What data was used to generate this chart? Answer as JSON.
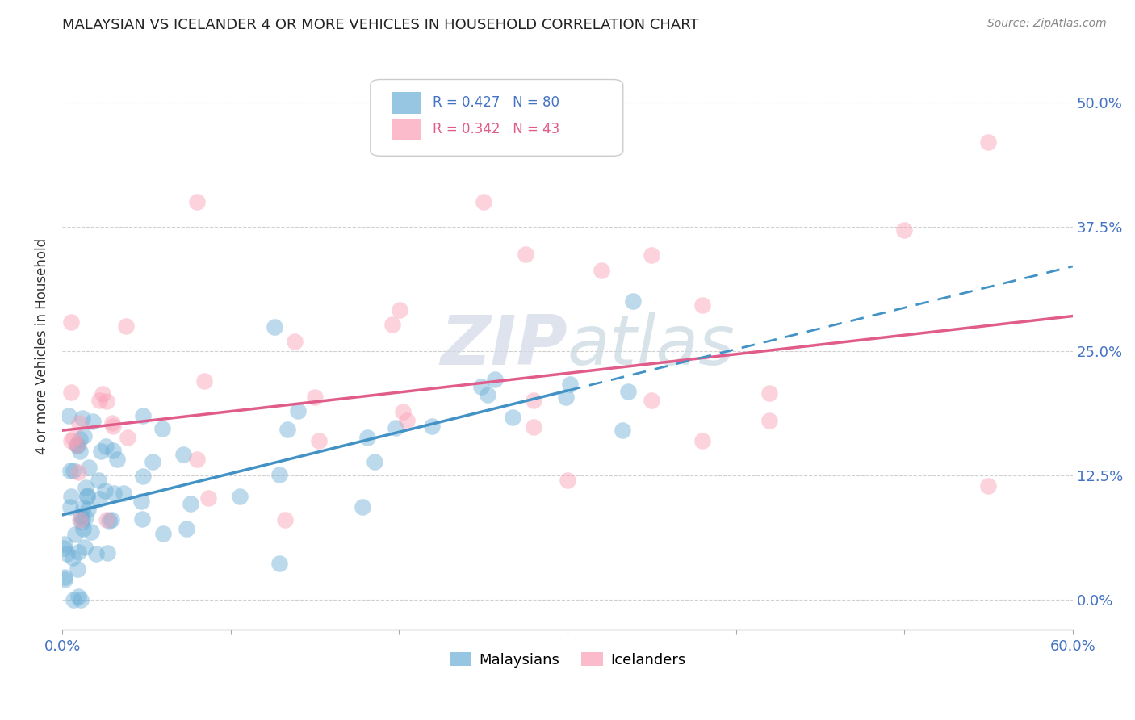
{
  "title": "MALAYSIAN VS ICELANDER 4 OR MORE VEHICLES IN HOUSEHOLD CORRELATION CHART",
  "source": "Source: ZipAtlas.com",
  "ylabel": "4 or more Vehicles in Household",
  "ytick_labels": [
    "0.0%",
    "12.5%",
    "25.0%",
    "37.5%",
    "50.0%"
  ],
  "ytick_values": [
    0.0,
    12.5,
    25.0,
    37.5,
    50.0
  ],
  "xmin": 0.0,
  "xmax": 60.0,
  "ymin": -3.0,
  "ymax": 54.0,
  "legend_r1": "R = 0.427",
  "legend_n1": "N = 80",
  "legend_r2": "R = 0.342",
  "legend_n2": "N = 43",
  "color_blue": "#6baed6",
  "color_pink": "#fa9fb5",
  "color_blue_line": "#4292c6",
  "color_pink_line": "#e05c8a",
  "watermark": "ZIPatlas",
  "blue_line_start_x": 0.0,
  "blue_line_start_y": 8.5,
  "blue_line_solid_end_x": 30.0,
  "blue_line_solid_end_y": 21.0,
  "blue_line_dash_end_x": 60.0,
  "blue_line_dash_end_y": 33.5,
  "pink_line_start_x": 0.0,
  "pink_line_start_y": 17.0,
  "pink_line_end_x": 60.0,
  "pink_line_end_y": 28.5
}
